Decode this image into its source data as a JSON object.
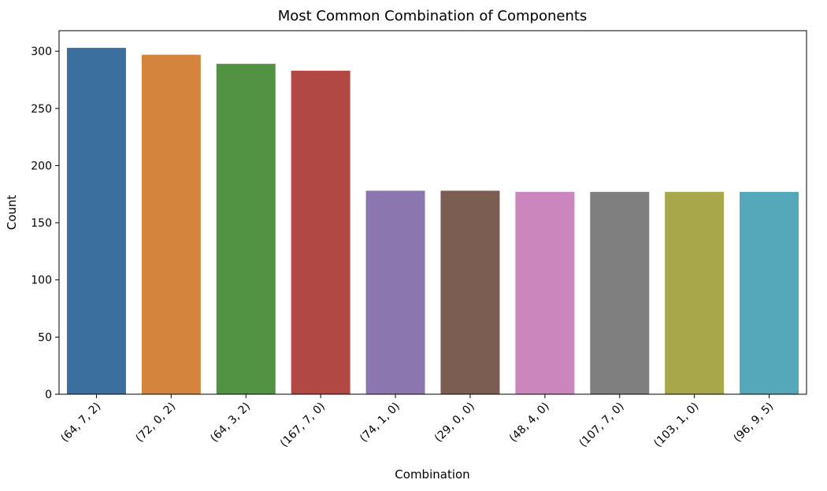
{
  "chart_data": {
    "type": "bar",
    "title": "Most Common Combination of Components",
    "xlabel": "Combination",
    "ylabel": "Count",
    "categories": [
      "(64, 7, 2)",
      "(72, 0, 2)",
      "(64, 3, 2)",
      "(167, 7, 0)",
      "(74, 1, 0)",
      "(29, 0, 0)",
      "(48, 4, 0)",
      "(107, 7, 0)",
      "(103, 1, 0)",
      "(96, 9, 5)"
    ],
    "values": [
      303,
      297,
      289,
      283,
      178,
      178,
      177,
      177,
      177,
      177
    ],
    "colors": [
      "#3a6f9e",
      "#d5843e",
      "#529343",
      "#b14843",
      "#8c76af",
      "#7c5d52",
      "#cb87bd",
      "#7f7f7f",
      "#a8a74a",
      "#54a8b9"
    ],
    "ylim": [
      0,
      318
    ],
    "yticks": [
      0,
      50,
      100,
      150,
      200,
      250,
      300
    ],
    "grid": false,
    "legend": "none"
  }
}
